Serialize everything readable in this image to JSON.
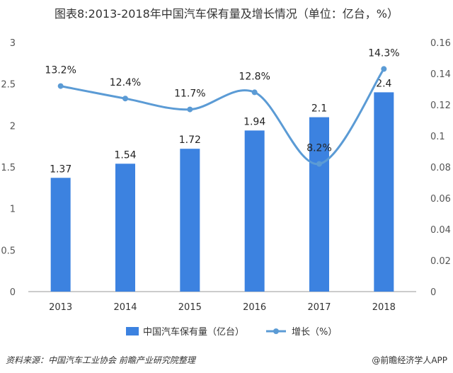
{
  "chart_data": {
    "type": "bar",
    "title": "图表8:2013-2018年中国汽车保有量及增长情况（单位：亿台，%）",
    "categories": [
      "2013",
      "2014",
      "2015",
      "2016",
      "2017",
      "2018"
    ],
    "series": [
      {
        "name": "中国汽车保有量（亿台）",
        "type": "bar",
        "axis": "left",
        "color": "#3c82e0",
        "values": [
          1.37,
          1.54,
          1.72,
          1.94,
          2.1,
          2.4
        ],
        "labels": [
          "1.37",
          "1.54",
          "1.72",
          "1.94",
          "2.1",
          "2.4"
        ]
      },
      {
        "name": "增长（%）",
        "type": "line",
        "axis": "right",
        "color": "#5b9bd5",
        "values": [
          0.132,
          0.124,
          0.117,
          0.128,
          0.082,
          0.143
        ],
        "labels": [
          "13.2%",
          "12.4%",
          "11.7%",
          "12.8%",
          "8.2%",
          "14.3%"
        ]
      }
    ],
    "y_left": {
      "ylim": [
        0,
        3
      ],
      "ticks": [
        "0",
        "0.5",
        "1",
        "1.5",
        "2",
        "2.5",
        "3"
      ]
    },
    "y_right": {
      "ylim": [
        0,
        0.16
      ],
      "ticks": [
        "0",
        "0.02",
        "0.04",
        "0.06",
        "0.08",
        "0.1",
        "0.12",
        "0.14",
        "0.16"
      ]
    },
    "legend": "bottom",
    "grid": false
  },
  "footer": {
    "source": "资料来源：中国汽车工业协会 前瞻产业研究院整理",
    "brand": "@前瞻经济学人APP"
  }
}
